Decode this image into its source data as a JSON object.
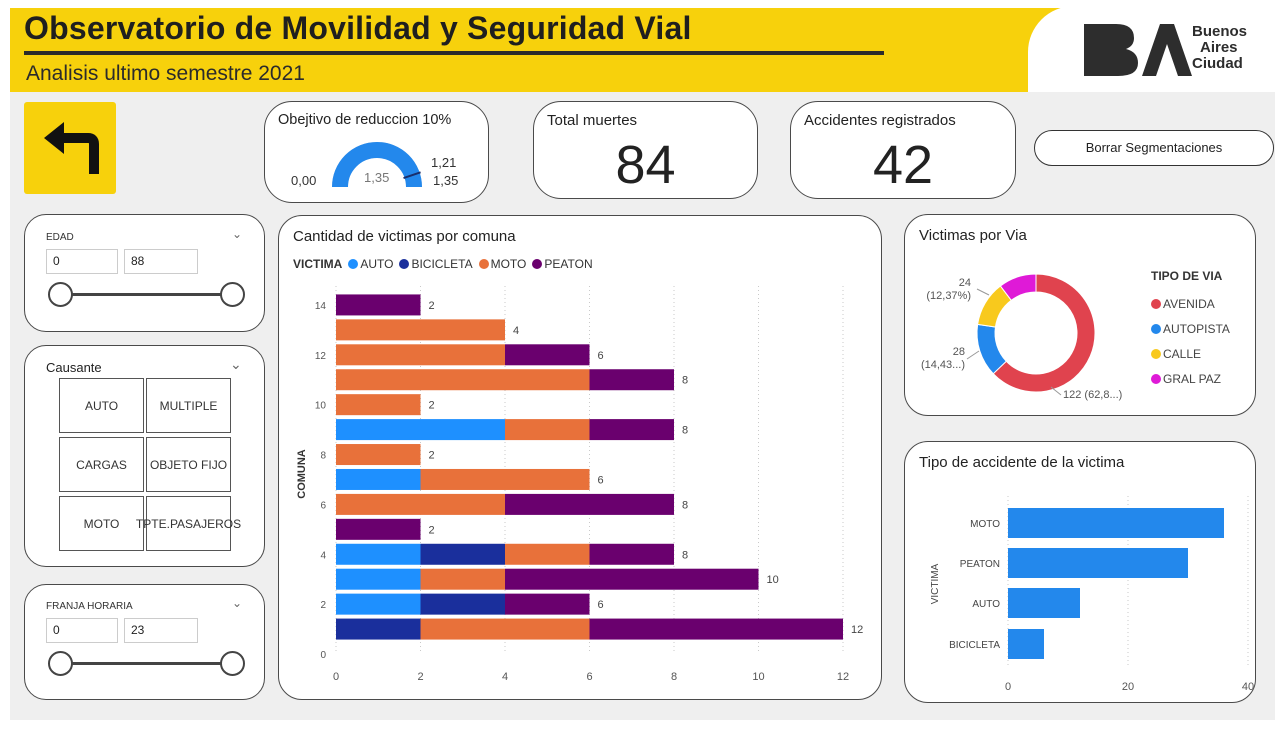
{
  "header": {
    "title": "Observatorio de Movilidad y Seguridad Vial",
    "subtitle": "Analisis ultimo semestre 2021",
    "logo": {
      "mark": "BA",
      "line1": "Buenos",
      "line2": "Aires",
      "line3": "Ciudad"
    }
  },
  "colors": {
    "brand_yellow": "#f7d10c",
    "auto": "#1e90ff",
    "bicicleta": "#1a2f9c",
    "moto": "#e8713a",
    "peaton": "#6a006e",
    "avenida": "#e0434e",
    "autopista": "#2388ec",
    "calle": "#f8c91d",
    "gral_paz": "#df1ad7"
  },
  "back_button": {
    "icon": "turn-left-arrow-icon"
  },
  "clear_button": {
    "label": "Borrar Segmentaciones"
  },
  "gauge": {
    "title": "Obejtivo de reduccion 10%",
    "min_label": "0,00",
    "value_label": "1,35",
    "target_label": "1,21",
    "max_label": "1,35",
    "min": 0,
    "max": 1.35,
    "value": 1.35,
    "target": 1.21
  },
  "kpi_deaths": {
    "title": "Total muertes",
    "value": "84"
  },
  "kpi_accidents": {
    "title": "Accidentes registrados",
    "value": "42"
  },
  "slicer_edad": {
    "label": "EDAD",
    "min": "0",
    "max": "88"
  },
  "slicer_causante": {
    "label": "Causante",
    "options": [
      "AUTO",
      "MULTIPLE",
      "CARGAS",
      "OBJETO FIJO",
      "MOTO",
      "TPTE. PASAJEROS"
    ]
  },
  "slicer_franja": {
    "label": "FRANJA HORARIA",
    "min": "0",
    "max": "23"
  },
  "chart_data": [
    {
      "type": "bar",
      "orientation": "horizontal",
      "stacked": true,
      "title": "Cantidad de victimas por comuna",
      "legend_title": "VICTIMA",
      "ylabel": "COMUNA",
      "xlim": [
        0,
        12
      ],
      "ylim": [
        0,
        15
      ],
      "x_ticks": [
        "0",
        "2",
        "4",
        "6",
        "8",
        "10",
        "12"
      ],
      "y_ticks": [
        "0",
        "2",
        "4",
        "6",
        "8",
        "10",
        "12",
        "14"
      ],
      "grid": true,
      "legend_position": "top-left",
      "categories": [
        14,
        13,
        12,
        11,
        10,
        9,
        8,
        7,
        6,
        5,
        4,
        3,
        2,
        1
      ],
      "series": [
        {
          "name": "AUTO",
          "values": [
            0,
            0,
            0,
            0,
            0,
            4,
            0,
            2,
            0,
            0,
            2,
            2,
            2,
            0
          ]
        },
        {
          "name": "BICICLETA",
          "values": [
            0,
            0,
            0,
            0,
            0,
            0,
            0,
            0,
            0,
            0,
            2,
            0,
            2,
            2
          ]
        },
        {
          "name": "MOTO",
          "values": [
            0,
            4,
            4,
            6,
            2,
            2,
            2,
            4,
            4,
            0,
            2,
            2,
            0,
            4
          ]
        },
        {
          "name": "PEATON",
          "values": [
            2,
            0,
            2,
            2,
            0,
            2,
            0,
            0,
            4,
            2,
            2,
            6,
            2,
            6
          ]
        }
      ],
      "totals": [
        2,
        4,
        6,
        8,
        2,
        8,
        2,
        6,
        8,
        2,
        8,
        10,
        6,
        12
      ]
    },
    {
      "type": "pie",
      "donut": true,
      "title": "Victimas por Via",
      "legend_title": "TIPO DE VIA",
      "legend_position": "right",
      "categories": [
        "AVENIDA",
        "AUTOPISTA",
        "CALLE",
        "GRAL PAZ"
      ],
      "values": [
        122,
        28,
        24,
        20
      ],
      "data_labels": [
        "122 (62,8...)",
        "28 (14,43...)",
        "24 (12,37%)",
        ""
      ]
    },
    {
      "type": "bar",
      "orientation": "horizontal",
      "title": "Tipo de accidente de la victima",
      "ylabel": "VICTIMA",
      "categories": [
        "MOTO",
        "PEATON",
        "AUTO",
        "BICICLETA"
      ],
      "values": [
        36,
        30,
        12,
        6
      ],
      "xlim": [
        0,
        40
      ],
      "x_ticks": [
        "0",
        "20",
        "40"
      ]
    }
  ]
}
